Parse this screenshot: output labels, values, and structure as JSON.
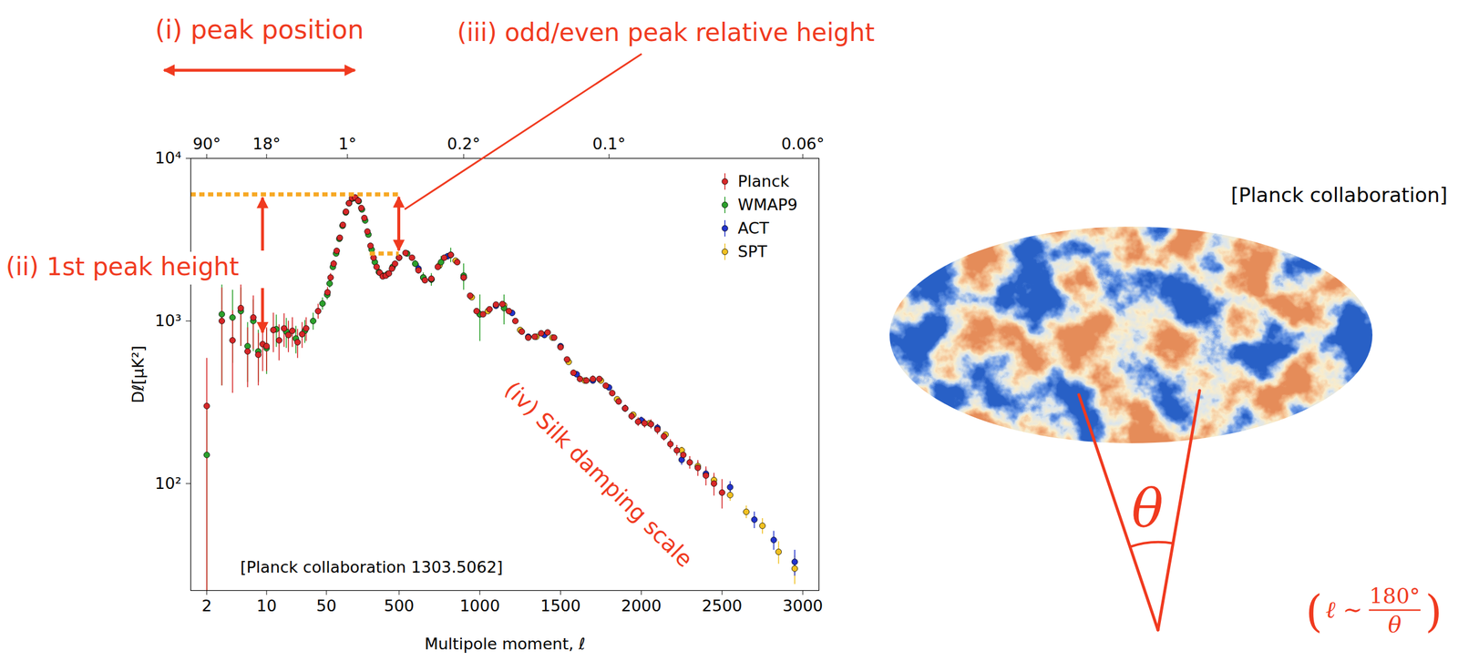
{
  "chart_data": {
    "type": "scatter",
    "x_label": "Multipole moment, ℓ",
    "y_label": "Dℓ[μK²]",
    "xlim": [
      1.3,
      3100
    ],
    "xticks": [
      2,
      10,
      50,
      500,
      1000,
      1500,
      2000,
      2500,
      3000
    ],
    "x2ticks": [
      {
        "value": 2,
        "label": "90°"
      },
      {
        "value": 10,
        "label": "18°"
      },
      {
        "value": 180,
        "label": "1°"
      },
      {
        "value": 900,
        "label": "0.2°"
      },
      {
        "value": 1800,
        "label": "0.1°"
      },
      {
        "value": 3000,
        "label": "0.06°"
      }
    ],
    "ylim": [
      22,
      10000
    ],
    "yticks": [
      {
        "value": 100,
        "label": "10²"
      },
      {
        "value": 1000,
        "label": "10³"
      },
      {
        "value": 10000,
        "label": "10⁴"
      }
    ],
    "log": "y",
    "legend": "top-right",
    "marker": "circle",
    "source": "[Planck collaboration 1303.5062]",
    "annotations": [
      "(i) peak position",
      "(ii) 1st peak height",
      "(iii) odd/even peak relative height",
      "(iv) Silk damping scale"
    ],
    "reference_lines": [
      {
        "y": 6000,
        "x": [
          1.3,
          500
        ]
      },
      {
        "y": 2600,
        "x": [
          320,
          500
        ]
      }
    ],
    "series": [
      {
        "name": "Planck",
        "color": "#d62728",
        "x": [
          2,
          3,
          4,
          5,
          6,
          7,
          8,
          9,
          10,
          12,
          14,
          16,
          18,
          20,
          23,
          26,
          29,
          40,
          57,
          76,
          95,
          114,
          133,
          152,
          171,
          190,
          209,
          228,
          247,
          266,
          285,
          304,
          323,
          342,
          361,
          380,
          399,
          418,
          437,
          456,
          475,
          500,
          540,
          580,
          620,
          660,
          700,
          740,
          780,
          820,
          860,
          900,
          940,
          980,
          1020,
          1060,
          1100,
          1140,
          1180,
          1220,
          1260,
          1300,
          1340,
          1380,
          1420,
          1460,
          1500,
          1540,
          1580,
          1620,
          1660,
          1700,
          1740,
          1780,
          1820,
          1860,
          1900,
          1940,
          1980,
          2020,
          2060,
          2100,
          2140,
          2180,
          2220,
          2260,
          2300,
          2350,
          2400,
          2450,
          2500
        ],
        "values": [
          300,
          1000,
          760,
          1200,
          650,
          1050,
          620,
          720,
          700,
          880,
          760,
          900,
          820,
          870,
          740,
          830,
          900,
          1150,
          1500,
          1850,
          2250,
          2700,
          3250,
          3900,
          4700,
          5300,
          5700,
          5750,
          5500,
          4950,
          4300,
          3550,
          2900,
          2450,
          2150,
          1980,
          1880,
          1900,
          1960,
          2100,
          2250,
          2450,
          2620,
          2450,
          2050,
          1780,
          1820,
          2150,
          2450,
          2550,
          2300,
          1850,
          1430,
          1150,
          1100,
          1180,
          1260,
          1270,
          1150,
          1000,
          860,
          790,
          800,
          840,
          850,
          790,
          690,
          580,
          480,
          440,
          430,
          440,
          440,
          400,
          360,
          320,
          290,
          260,
          240,
          235,
          232,
          215,
          195,
          175,
          160,
          150,
          135,
          125,
          112,
          100,
          88
        ],
        "errors": [
          290,
          600,
          400,
          500,
          260,
          380,
          220,
          230,
          210,
          240,
          190,
          210,
          180,
          180,
          150,
          150,
          150,
          120,
          110,
          110,
          110,
          110,
          110,
          110,
          110,
          110,
          110,
          110,
          110,
          100,
          90,
          80,
          70,
          60,
          55,
          50,
          50,
          45,
          45,
          45,
          45,
          45,
          40,
          40,
          40,
          40,
          40,
          40,
          40,
          40,
          40,
          40,
          30,
          30,
          30,
          30,
          30,
          30,
          30,
          30,
          30,
          30,
          20,
          20,
          20,
          20,
          20,
          20,
          20,
          20,
          20,
          20,
          15,
          15,
          15,
          15,
          15,
          15,
          15,
          15,
          15,
          15,
          12,
          12,
          12,
          12,
          12,
          14,
          15,
          16,
          18
        ]
      },
      {
        "name": "WMAP9",
        "color": "#2ca02c",
        "x": [
          2,
          3,
          4,
          5,
          6,
          7,
          8,
          10,
          13,
          17,
          22,
          28,
          35,
          45,
          55,
          70,
          90,
          110,
          130,
          150,
          170,
          190,
          210,
          230,
          250,
          270,
          290,
          310,
          330,
          350,
          375,
          400,
          430,
          460,
          500,
          550,
          600,
          650,
          700,
          760,
          820,
          900,
          1000,
          1150
        ],
        "values": [
          150,
          1100,
          1050,
          1150,
          700,
          1000,
          650,
          680,
          890,
          860,
          780,
          870,
          1000,
          1280,
          1450,
          1700,
          2150,
          2600,
          3200,
          3850,
          4650,
          5300,
          5650,
          5700,
          5450,
          4850,
          4150,
          3400,
          2750,
          2300,
          2000,
          1900,
          1950,
          2150,
          2450,
          2600,
          2250,
          1850,
          1800,
          2300,
          2550,
          1900,
          1100,
          1200
        ],
        "errors": [
          145,
          700,
          500,
          450,
          280,
          350,
          230,
          210,
          200,
          180,
          150,
          140,
          120,
          110,
          100,
          100,
          100,
          100,
          100,
          110,
          110,
          110,
          110,
          110,
          110,
          110,
          110,
          100,
          90,
          80,
          80,
          80,
          80,
          90,
          90,
          100,
          110,
          130,
          160,
          200,
          260,
          350,
          350,
          250
        ]
      },
      {
        "name": "ACT",
        "color": "#2233cc",
        "x": [
          620,
          700,
          800,
          900,
          1000,
          1100,
          1200,
          1300,
          1400,
          1500,
          1600,
          1700,
          1800,
          1900,
          2000,
          2100,
          2250,
          2400,
          2550,
          2700,
          2820,
          2950
        ],
        "values": [
          2100,
          1800,
          2500,
          1850,
          1100,
          1240,
          1120,
          800,
          820,
          700,
          470,
          430,
          390,
          290,
          245,
          220,
          140,
          115,
          95,
          60,
          45,
          33
        ],
        "errors": [
          150,
          100,
          100,
          80,
          60,
          50,
          45,
          30,
          30,
          25,
          20,
          18,
          15,
          14,
          12,
          12,
          10,
          8,
          8,
          7,
          6,
          6
        ]
      },
      {
        "name": "SPT",
        "color": "#f0c020",
        "x": [
          650,
          750,
          850,
          950,
          1050,
          1150,
          1250,
          1350,
          1450,
          1550,
          1650,
          1750,
          1850,
          1950,
          2050,
          2150,
          2250,
          2350,
          2450,
          2550,
          2650,
          2750,
          2850,
          2950
        ],
        "values": [
          1850,
          2200,
          2350,
          1400,
          1150,
          1250,
          880,
          800,
          790,
          560,
          430,
          430,
          330,
          265,
          235,
          200,
          160,
          128,
          105,
          85,
          67,
          55,
          38,
          30
        ],
        "errors": [
          70,
          70,
          60,
          40,
          30,
          25,
          20,
          15,
          15,
          12,
          10,
          10,
          9,
          8,
          8,
          8,
          8,
          7,
          7,
          7,
          6,
          6,
          6,
          6
        ]
      }
    ]
  },
  "sky_map": {
    "credit": "[Planck collaboration]",
    "angle_label": "θ",
    "relation": {
      "open": "(",
      "lhs": "ℓ ∼",
      "numerator": "180°",
      "denominator": "θ",
      "close": ")"
    }
  }
}
